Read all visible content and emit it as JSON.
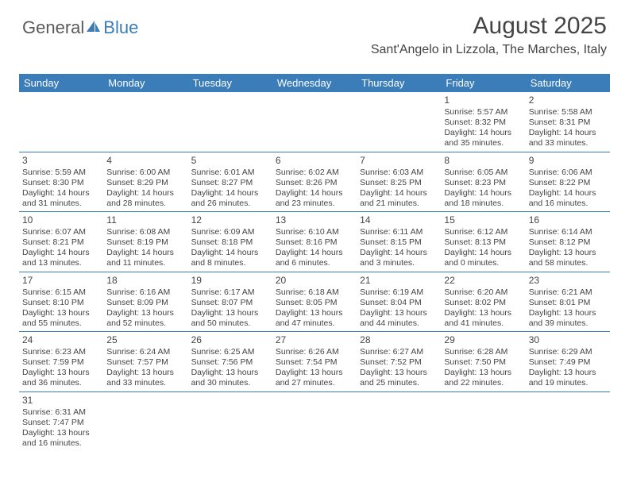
{
  "logo": {
    "text1": "General",
    "text2": "Blue",
    "text_color1": "#5a5a5a",
    "text_color2": "#3a7db8",
    "sail_color": "#3a7db8"
  },
  "title": "August 2025",
  "location": "Sant'Angelo in Lizzola, The Marches, Italy",
  "colors": {
    "header_bg": "#3a7db8",
    "header_text": "#ffffff",
    "border": "#3a7db8",
    "body_text": "#444444"
  },
  "typography": {
    "title_fontsize": 30,
    "location_fontsize": 16,
    "dayheader_fontsize": 13,
    "cell_fontsize": 10.5
  },
  "day_names": [
    "Sunday",
    "Monday",
    "Tuesday",
    "Wednesday",
    "Thursday",
    "Friday",
    "Saturday"
  ],
  "weeks": [
    [
      null,
      null,
      null,
      null,
      null,
      {
        "d": "1",
        "sr": "Sunrise: 5:57 AM",
        "ss": "Sunset: 8:32 PM",
        "dl1": "Daylight: 14 hours",
        "dl2": "and 35 minutes."
      },
      {
        "d": "2",
        "sr": "Sunrise: 5:58 AM",
        "ss": "Sunset: 8:31 PM",
        "dl1": "Daylight: 14 hours",
        "dl2": "and 33 minutes."
      }
    ],
    [
      {
        "d": "3",
        "sr": "Sunrise: 5:59 AM",
        "ss": "Sunset: 8:30 PM",
        "dl1": "Daylight: 14 hours",
        "dl2": "and 31 minutes."
      },
      {
        "d": "4",
        "sr": "Sunrise: 6:00 AM",
        "ss": "Sunset: 8:29 PM",
        "dl1": "Daylight: 14 hours",
        "dl2": "and 28 minutes."
      },
      {
        "d": "5",
        "sr": "Sunrise: 6:01 AM",
        "ss": "Sunset: 8:27 PM",
        "dl1": "Daylight: 14 hours",
        "dl2": "and 26 minutes."
      },
      {
        "d": "6",
        "sr": "Sunrise: 6:02 AM",
        "ss": "Sunset: 8:26 PM",
        "dl1": "Daylight: 14 hours",
        "dl2": "and 23 minutes."
      },
      {
        "d": "7",
        "sr": "Sunrise: 6:03 AM",
        "ss": "Sunset: 8:25 PM",
        "dl1": "Daylight: 14 hours",
        "dl2": "and 21 minutes."
      },
      {
        "d": "8",
        "sr": "Sunrise: 6:05 AM",
        "ss": "Sunset: 8:23 PM",
        "dl1": "Daylight: 14 hours",
        "dl2": "and 18 minutes."
      },
      {
        "d": "9",
        "sr": "Sunrise: 6:06 AM",
        "ss": "Sunset: 8:22 PM",
        "dl1": "Daylight: 14 hours",
        "dl2": "and 16 minutes."
      }
    ],
    [
      {
        "d": "10",
        "sr": "Sunrise: 6:07 AM",
        "ss": "Sunset: 8:21 PM",
        "dl1": "Daylight: 14 hours",
        "dl2": "and 13 minutes."
      },
      {
        "d": "11",
        "sr": "Sunrise: 6:08 AM",
        "ss": "Sunset: 8:19 PM",
        "dl1": "Daylight: 14 hours",
        "dl2": "and 11 minutes."
      },
      {
        "d": "12",
        "sr": "Sunrise: 6:09 AM",
        "ss": "Sunset: 8:18 PM",
        "dl1": "Daylight: 14 hours",
        "dl2": "and 8 minutes."
      },
      {
        "d": "13",
        "sr": "Sunrise: 6:10 AM",
        "ss": "Sunset: 8:16 PM",
        "dl1": "Daylight: 14 hours",
        "dl2": "and 6 minutes."
      },
      {
        "d": "14",
        "sr": "Sunrise: 6:11 AM",
        "ss": "Sunset: 8:15 PM",
        "dl1": "Daylight: 14 hours",
        "dl2": "and 3 minutes."
      },
      {
        "d": "15",
        "sr": "Sunrise: 6:12 AM",
        "ss": "Sunset: 8:13 PM",
        "dl1": "Daylight: 14 hours",
        "dl2": "and 0 minutes."
      },
      {
        "d": "16",
        "sr": "Sunrise: 6:14 AM",
        "ss": "Sunset: 8:12 PM",
        "dl1": "Daylight: 13 hours",
        "dl2": "and 58 minutes."
      }
    ],
    [
      {
        "d": "17",
        "sr": "Sunrise: 6:15 AM",
        "ss": "Sunset: 8:10 PM",
        "dl1": "Daylight: 13 hours",
        "dl2": "and 55 minutes."
      },
      {
        "d": "18",
        "sr": "Sunrise: 6:16 AM",
        "ss": "Sunset: 8:09 PM",
        "dl1": "Daylight: 13 hours",
        "dl2": "and 52 minutes."
      },
      {
        "d": "19",
        "sr": "Sunrise: 6:17 AM",
        "ss": "Sunset: 8:07 PM",
        "dl1": "Daylight: 13 hours",
        "dl2": "and 50 minutes."
      },
      {
        "d": "20",
        "sr": "Sunrise: 6:18 AM",
        "ss": "Sunset: 8:05 PM",
        "dl1": "Daylight: 13 hours",
        "dl2": "and 47 minutes."
      },
      {
        "d": "21",
        "sr": "Sunrise: 6:19 AM",
        "ss": "Sunset: 8:04 PM",
        "dl1": "Daylight: 13 hours",
        "dl2": "and 44 minutes."
      },
      {
        "d": "22",
        "sr": "Sunrise: 6:20 AM",
        "ss": "Sunset: 8:02 PM",
        "dl1": "Daylight: 13 hours",
        "dl2": "and 41 minutes."
      },
      {
        "d": "23",
        "sr": "Sunrise: 6:21 AM",
        "ss": "Sunset: 8:01 PM",
        "dl1": "Daylight: 13 hours",
        "dl2": "and 39 minutes."
      }
    ],
    [
      {
        "d": "24",
        "sr": "Sunrise: 6:23 AM",
        "ss": "Sunset: 7:59 PM",
        "dl1": "Daylight: 13 hours",
        "dl2": "and 36 minutes."
      },
      {
        "d": "25",
        "sr": "Sunrise: 6:24 AM",
        "ss": "Sunset: 7:57 PM",
        "dl1": "Daylight: 13 hours",
        "dl2": "and 33 minutes."
      },
      {
        "d": "26",
        "sr": "Sunrise: 6:25 AM",
        "ss": "Sunset: 7:56 PM",
        "dl1": "Daylight: 13 hours",
        "dl2": "and 30 minutes."
      },
      {
        "d": "27",
        "sr": "Sunrise: 6:26 AM",
        "ss": "Sunset: 7:54 PM",
        "dl1": "Daylight: 13 hours",
        "dl2": "and 27 minutes."
      },
      {
        "d": "28",
        "sr": "Sunrise: 6:27 AM",
        "ss": "Sunset: 7:52 PM",
        "dl1": "Daylight: 13 hours",
        "dl2": "and 25 minutes."
      },
      {
        "d": "29",
        "sr": "Sunrise: 6:28 AM",
        "ss": "Sunset: 7:50 PM",
        "dl1": "Daylight: 13 hours",
        "dl2": "and 22 minutes."
      },
      {
        "d": "30",
        "sr": "Sunrise: 6:29 AM",
        "ss": "Sunset: 7:49 PM",
        "dl1": "Daylight: 13 hours",
        "dl2": "and 19 minutes."
      }
    ],
    [
      {
        "d": "31",
        "sr": "Sunrise: 6:31 AM",
        "ss": "Sunset: 7:47 PM",
        "dl1": "Daylight: 13 hours",
        "dl2": "and 16 minutes."
      },
      null,
      null,
      null,
      null,
      null,
      null
    ]
  ]
}
